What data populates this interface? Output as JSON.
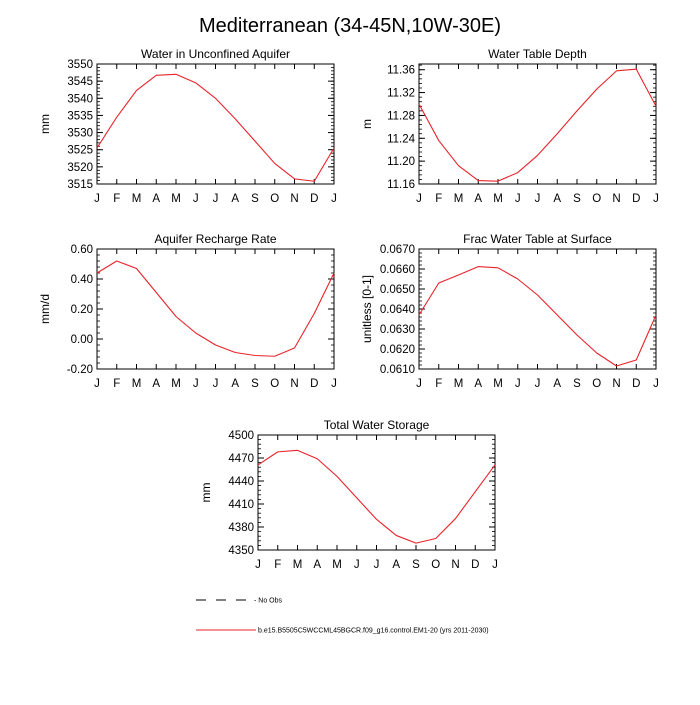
{
  "main_title": "Mediterranean (34-45N,10W-30E)",
  "colors": {
    "series": "#e8232a",
    "axis": "#000000",
    "obs": "#000000"
  },
  "legend": {
    "obs_label": "- No Obs",
    "model_label": "b.e15.B5505C5WCCML45BGCR.f09_g16.control.EM1-20 (yrs 2011-2030)"
  },
  "chart_data": [
    {
      "id": "aquifer",
      "type": "line",
      "title": "Water in Unconfined Aquifer",
      "ylabel": "mm",
      "xlabel": "",
      "categories": [
        "J",
        "F",
        "M",
        "A",
        "M",
        "J",
        "J",
        "A",
        "S",
        "O",
        "N",
        "D",
        "J"
      ],
      "ylim": [
        3515,
        3550
      ],
      "yticks": [
        "3515",
        "3520",
        "3525",
        "3530",
        "3535",
        "3540",
        "3545",
        "3550"
      ],
      "series": [
        {
          "name": "b.e15.B5505C5WCCML45BGCR.f09_g16.control.EM1-20 (yrs 2011-2030)",
          "values": [
            3525.5,
            3534.5,
            3542.3,
            3546.7,
            3547.0,
            3544.5,
            3540.0,
            3534.0,
            3527.5,
            3521.0,
            3516.5,
            3515.8,
            3525.5
          ]
        }
      ]
    },
    {
      "id": "depth",
      "type": "line",
      "title": "Water Table Depth",
      "ylabel": "m",
      "xlabel": "",
      "categories": [
        "J",
        "F",
        "M",
        "A",
        "M",
        "J",
        "J",
        "A",
        "S",
        "O",
        "N",
        "D",
        "J"
      ],
      "ylim": [
        11.16,
        11.37
      ],
      "yticks": [
        "11.16",
        "11.20",
        "11.24",
        "11.28",
        "11.32",
        "11.36"
      ],
      "series": [
        {
          "name": "b.e15.B5505C5WCCML45BGCR.f09_g16.control.EM1-20 (yrs 2011-2030)",
          "values": [
            11.3,
            11.236,
            11.192,
            11.166,
            11.165,
            11.18,
            11.21,
            11.248,
            11.288,
            11.326,
            11.358,
            11.361,
            11.296
          ]
        }
      ]
    },
    {
      "id": "recharge",
      "type": "line",
      "title": "Aquifer Recharge Rate",
      "ylabel": "mm/d",
      "xlabel": "",
      "categories": [
        "J",
        "F",
        "M",
        "A",
        "M",
        "J",
        "J",
        "A",
        "S",
        "O",
        "N",
        "D",
        "J"
      ],
      "ylim": [
        -0.2,
        0.6
      ],
      "yticks": [
        "-0.20",
        "0.00",
        "0.20",
        "0.40",
        "0.60"
      ],
      "series": [
        {
          "name": "b.e15.B5505C5WCCML45BGCR.f09_g16.control.EM1-20 (yrs 2011-2030)",
          "values": [
            0.44,
            0.52,
            0.47,
            0.31,
            0.15,
            0.04,
            -0.04,
            -0.09,
            -0.11,
            -0.115,
            -0.06,
            0.17,
            0.44
          ]
        }
      ]
    },
    {
      "id": "frac",
      "type": "line",
      "title": "Frac Water Table at Surface",
      "ylabel": "unitless [0-1]",
      "xlabel": "",
      "categories": [
        "J",
        "F",
        "M",
        "A",
        "M",
        "J",
        "J",
        "A",
        "S",
        "O",
        "N",
        "D",
        "J"
      ],
      "ylim": [
        0.061,
        0.067
      ],
      "yticks": [
        "0.0610",
        "0.0620",
        "0.0630",
        "0.0640",
        "0.0650",
        "0.0660",
        "0.0670"
      ],
      "series": [
        {
          "name": "b.e15.B5505C5WCCML45BGCR.f09_g16.control.EM1-20 (yrs 2011-2030)",
          "values": [
            0.0637,
            0.0653,
            0.0657,
            0.06612,
            0.06606,
            0.0655,
            0.0647,
            0.0637,
            0.0627,
            0.0618,
            0.06115,
            0.06145,
            0.0637
          ]
        }
      ]
    },
    {
      "id": "storage",
      "type": "line",
      "title": "Total Water Storage",
      "ylabel": "mm",
      "xlabel": "",
      "categories": [
        "J",
        "F",
        "M",
        "A",
        "M",
        "J",
        "J",
        "A",
        "S",
        "O",
        "N",
        "D",
        "J"
      ],
      "ylim": [
        4350,
        4500
      ],
      "yticks": [
        "4350",
        "4380",
        "4410",
        "4440",
        "4470",
        "4500"
      ],
      "series": [
        {
          "name": "b.e15.B5505C5WCCML45BGCR.f09_g16.control.EM1-20 (yrs 2011-2030)",
          "values": [
            4461,
            4478,
            4480,
            4469,
            4446,
            4418,
            4390,
            4369,
            4359,
            4365,
            4391,
            4426,
            4461
          ]
        }
      ]
    }
  ]
}
